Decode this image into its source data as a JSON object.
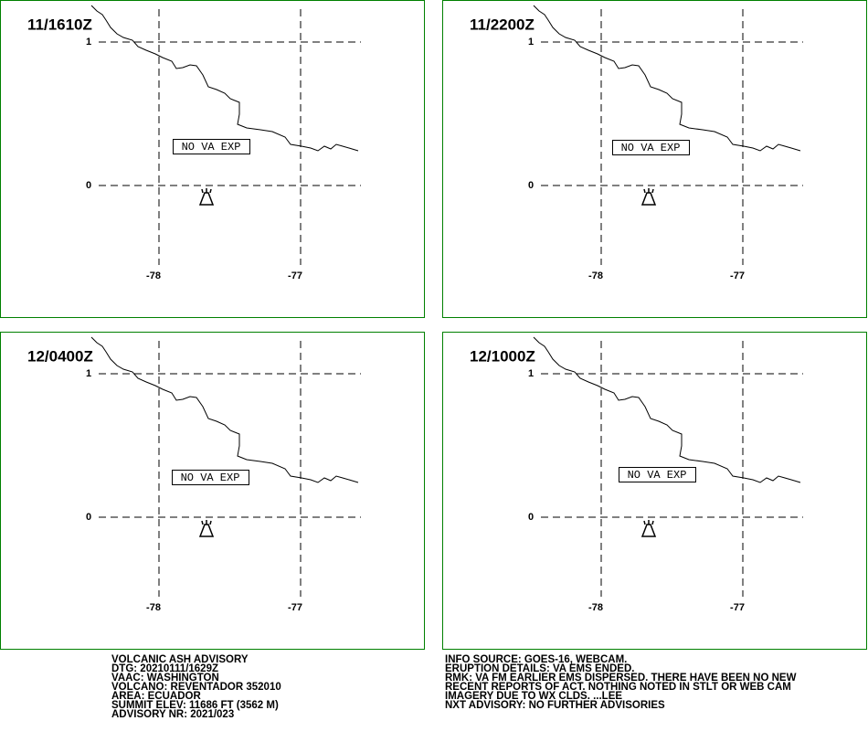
{
  "panels": [
    {
      "time": "11/1610Z",
      "label": "NO VA EXP"
    },
    {
      "time": "11/2200Z",
      "label": "NO VA EXP"
    },
    {
      "time": "12/0400Z",
      "label": "NO VA EXP"
    },
    {
      "time": "12/1000Z",
      "label": "NO VA EXP"
    }
  ],
  "lat_labels": [
    "1",
    "0"
  ],
  "lon_labels": [
    "-78",
    "-77"
  ],
  "advisory_left": [
    "VOLCANIC ASH ADVISORY",
    "DTG: 20210111/1629Z",
    "VAAC: WASHINGTON",
    "VOLCANO: REVENTADOR 352010",
    "AREA: ECUADOR",
    "SUMMIT ELEV: 11686 FT (3562 M)",
    "ADVISORY NR: 2021/023"
  ],
  "advisory_right": [
    "INFO SOURCE: GOES-16, WEBCAM.",
    "ERUPTION DETAILS: VA EMS ENDED.",
    "RMK: VA FM EARLIER EMS DISPERSED. THERE HAVE BEEN NO NEW",
    "RECENT REPORTS OF ACT. NOTHING NOTED IN STLT OR WEB CAM",
    "IMAGERY DUE TO WX CLDS. ...LEE",
    "NXT ADVISORY: NO FURTHER ADVISORIES"
  ]
}
